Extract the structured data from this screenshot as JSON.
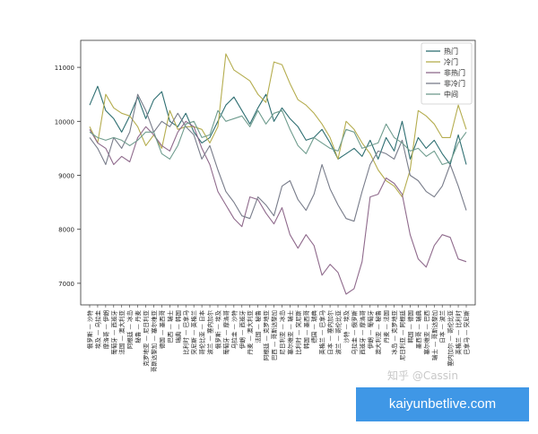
{
  "chart_data": {
    "type": "line",
    "title": "",
    "xlabel": "",
    "ylabel": "",
    "ylim": [
      6600,
      11500
    ],
    "yticks": [
      7000,
      8000,
      9000,
      10000,
      11000
    ],
    "grid": false,
    "legend_position": "top-right",
    "categories": [
      "俄罗斯 — 沙特",
      "埃及 — 乌拉圭",
      "摩洛哥 — 伊朗",
      "葡萄牙 — 西班牙",
      "法国 — 澳大利亚",
      "阿根廷 — 冰岛",
      "秘鲁 — 丹麦",
      "克罗地亚 — 尼日利亚",
      "哥斯达黎加 — 塞尔维亚",
      "德国 — 墨西哥",
      "巴西 — 瑞士",
      "瑞典 — 韩国",
      "比利时 — 巴拿马",
      "突尼斯 — 英格兰",
      "哥伦比亚 — 日本",
      "波兰 — 塞内加尔",
      "俄罗斯 — 埃及",
      "葡萄牙 — 摩洛哥",
      "乌拉圭 — 沙特",
      "伊朗 — 西班牙",
      "丹麦 — 澳大利亚",
      "法国 — 秘鲁",
      "阿根廷 — 克罗地亚",
      "巴西 — 哥斯达黎加",
      "尼日利亚 — 冰岛",
      "塞尔维亚 — 瑞士",
      "比利时 — 突尼斯",
      "韩国 — 墨西哥",
      "德国 — 瑞典",
      "英格兰 — 巴拿马",
      "日本 — 塞内加尔",
      "波兰 — 哥伦比亚",
      "沙特 — 埃及",
      "乌拉圭 — 俄罗斯",
      "西班牙 — 摩洛哥",
      "伊朗 — 葡萄牙",
      "澳大利亚 — 秘鲁",
      "丹麦 — 法国",
      "冰岛 — 克罗地亚",
      "尼日利亚 — 阿根廷",
      "韩国 — 德国",
      "墨西哥 — 瑞典",
      "塞尔维亚 — 巴西",
      "瑞士 — 哥斯达黎加",
      "日本 — 波兰",
      "塞内加尔 — 哥伦比亚",
      "英格兰 — 比利时",
      "巴拿马 — 突尼斯"
    ],
    "series": [
      {
        "name": "热门",
        "color": "#2f6f72",
        "values": [
          10300,
          10650,
          10200,
          10050,
          9800,
          10100,
          10450,
          10050,
          10400,
          10550,
          10000,
          9900,
          10150,
          9800,
          9600,
          9700,
          10000,
          10300,
          10450,
          10200,
          9950,
          10250,
          10500,
          10000,
          10250,
          10050,
          9900,
          9650,
          9700,
          9850,
          9600,
          9300,
          9400,
          9500,
          9350,
          9650,
          9300,
          9700,
          9450,
          10000,
          9300,
          9700,
          9500,
          9650,
          9400,
          9200,
          9750,
          9200
        ]
      },
      {
        "name": "冷门",
        "color": "#b5ad4f",
        "values": [
          9900,
          9600,
          10500,
          10250,
          10150,
          10100,
          9900,
          9550,
          9750,
          9500,
          10200,
          9850,
          9900,
          9900,
          9850,
          9600,
          9900,
          11250,
          10950,
          10850,
          10750,
          10500,
          10350,
          11100,
          11050,
          10700,
          10400,
          10300,
          10150,
          9950,
          9700,
          9300,
          10000,
          9850,
          9600,
          9400,
          9100,
          8900,
          8800,
          8600,
          9100,
          10200,
          10100,
          9950,
          9700,
          9700,
          10300,
          9850
        ]
      },
      {
        "name": "非热门",
        "color": "#8f6a8c",
        "values": [
          9850,
          9600,
          9500,
          9200,
          9350,
          9250,
          9700,
          9900,
          9750,
          9550,
          9450,
          9800,
          10000,
          9900,
          9500,
          9200,
          8700,
          8450,
          8200,
          8050,
          8600,
          8550,
          8300,
          8100,
          8400,
          7900,
          7650,
          7900,
          7700,
          7150,
          7350,
          7200,
          6800,
          6900,
          7400,
          8600,
          8650,
          8950,
          8850,
          8650,
          7900,
          7450,
          7300,
          7700,
          7900,
          7850,
          7450,
          7400
        ]
      },
      {
        "name": "非冷门",
        "color": "#787c8a",
        "values": [
          9700,
          9500,
          9200,
          9700,
          9500,
          9800,
          10500,
          10200,
          9800,
          10000,
          9900,
          10150,
          9900,
          9750,
          9300,
          9550,
          9100,
          8700,
          8500,
          8250,
          8200,
          8600,
          8450,
          8250,
          8800,
          8900,
          8550,
          8350,
          8650,
          9200,
          8750,
          8450,
          8200,
          8150,
          8700,
          9200,
          9450,
          9400,
          9300,
          9650,
          9000,
          8900,
          8700,
          8600,
          8800,
          9200,
          8800,
          8350
        ]
      },
      {
        "name": "中间",
        "color": "#6f9c8e",
        "values": [
          9800,
          9700,
          9650,
          9700,
          9650,
          9550,
          9650,
          9800,
          9800,
          9400,
          9300,
          9550,
          9950,
          10000,
          9700,
          9750,
          10200,
          10000,
          10050,
          10100,
          9900,
          10200,
          9950,
          10150,
          10200,
          9850,
          9550,
          9400,
          9700,
          9600,
          9500,
          9450,
          9850,
          9800,
          9500,
          9550,
          9600,
          9950,
          9700,
          9600,
          9450,
          9500,
          9350,
          9450,
          9200,
          9250,
          9600,
          9800
        ]
      }
    ]
  },
  "watermark": {
    "text": "知乎 @Cassin"
  },
  "banner": {
    "text": "kaiyunbetlive.com"
  }
}
